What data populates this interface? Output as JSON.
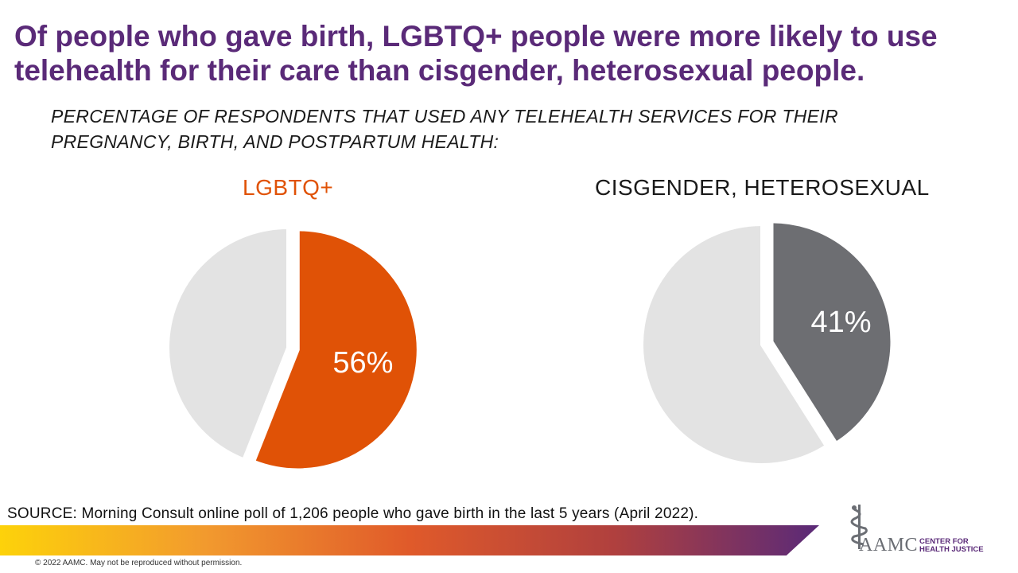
{
  "header": {
    "title": "Of people who gave birth, LGBTQ+ people were more likely to use telehealth for their care than cisgender, heterosexual people.",
    "subtitle": "PERCENTAGE OF RESPONDENTS THAT USED ANY TELEHEALTH SERVICES FOR THEIR PREGNANCY, BIRTH, AND POSTPARTUM HEALTH:"
  },
  "chart_data": [
    {
      "type": "pie",
      "title": "LGBTQ+",
      "title_color": "#e05206",
      "slices": [
        {
          "label": "56%",
          "value": 56,
          "color": "#e05206",
          "exploded": true
        },
        {
          "label": "",
          "value": 44,
          "color": "#e3e3e3",
          "exploded": false
        }
      ]
    },
    {
      "type": "pie",
      "title": "CISGENDER, HETEROSEXUAL",
      "title_color": "#1a1a1a",
      "slices": [
        {
          "label": "41%",
          "value": 41,
          "color": "#6d6e72",
          "exploded": true
        },
        {
          "label": "",
          "value": 59,
          "color": "#e3e3e3",
          "exploded": false
        }
      ]
    }
  ],
  "footer": {
    "source": "SOURCE: Morning Consult online poll of 1,206 people who gave birth in the last 5 years (April 2022).",
    "copyright": "© 2022 AAMC. May not be reproduced without permission.",
    "logo_text": "AAMC",
    "logo_subtext": "CENTER FOR HEALTH JUSTICE",
    "gradient_colors": [
      "#fdd20a",
      "#f29a2e",
      "#e05a2a",
      "#b0403e",
      "#5a2a78"
    ]
  },
  "brand": {
    "purple": "#5a2a78",
    "orange": "#e05206",
    "gray": "#6d6e72"
  }
}
